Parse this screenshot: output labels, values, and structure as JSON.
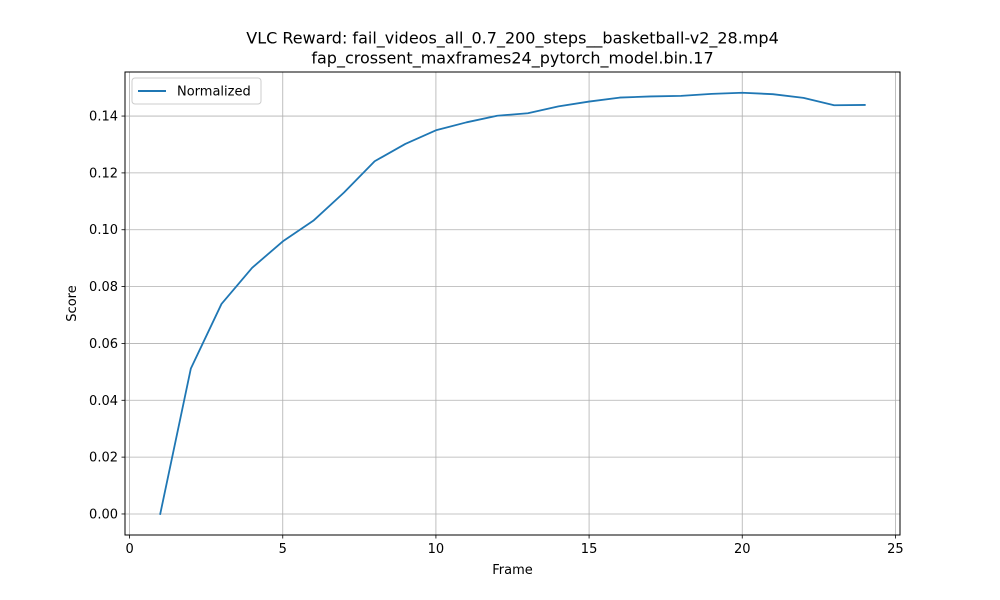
{
  "chart_data": {
    "type": "line",
    "title": "VLC Reward: fail_videos_all_0.7_200_steps__basketball-v2_28.mp4",
    "subtitle": "fap_crossent_maxframes24_pytorch_model.bin.17",
    "xlabel": "Frame",
    "ylabel": "Score",
    "xlim": [
      -0.15,
      25.15
    ],
    "ylim": [
      -0.0074,
      0.1555
    ],
    "xticks": [
      0,
      5,
      10,
      15,
      20,
      25
    ],
    "yticks": [
      0.0,
      0.02,
      0.04,
      0.06,
      0.08,
      0.1,
      0.12,
      0.14
    ],
    "ytick_labels": [
      "0.00",
      "0.02",
      "0.04",
      "0.06",
      "0.08",
      "0.10",
      "0.12",
      "0.14"
    ],
    "grid": true,
    "legend_position": "top-left",
    "series": [
      {
        "name": "Normalized",
        "color": "#1f77b4",
        "x": [
          1,
          2,
          3,
          4,
          5,
          6,
          7,
          8,
          9,
          10,
          11,
          12,
          13,
          14,
          15,
          16,
          17,
          18,
          19,
          20,
          21,
          22,
          23,
          24
        ],
        "y": [
          0.0,
          0.0512,
          0.0739,
          0.0866,
          0.0959,
          0.1032,
          0.1131,
          0.1241,
          0.1302,
          0.135,
          0.1378,
          0.1401,
          0.141,
          0.1434,
          0.1451,
          0.1465,
          0.1469,
          0.1471,
          0.1478,
          0.1482,
          0.1477,
          0.1464,
          0.1438,
          0.1439
        ]
      }
    ]
  }
}
